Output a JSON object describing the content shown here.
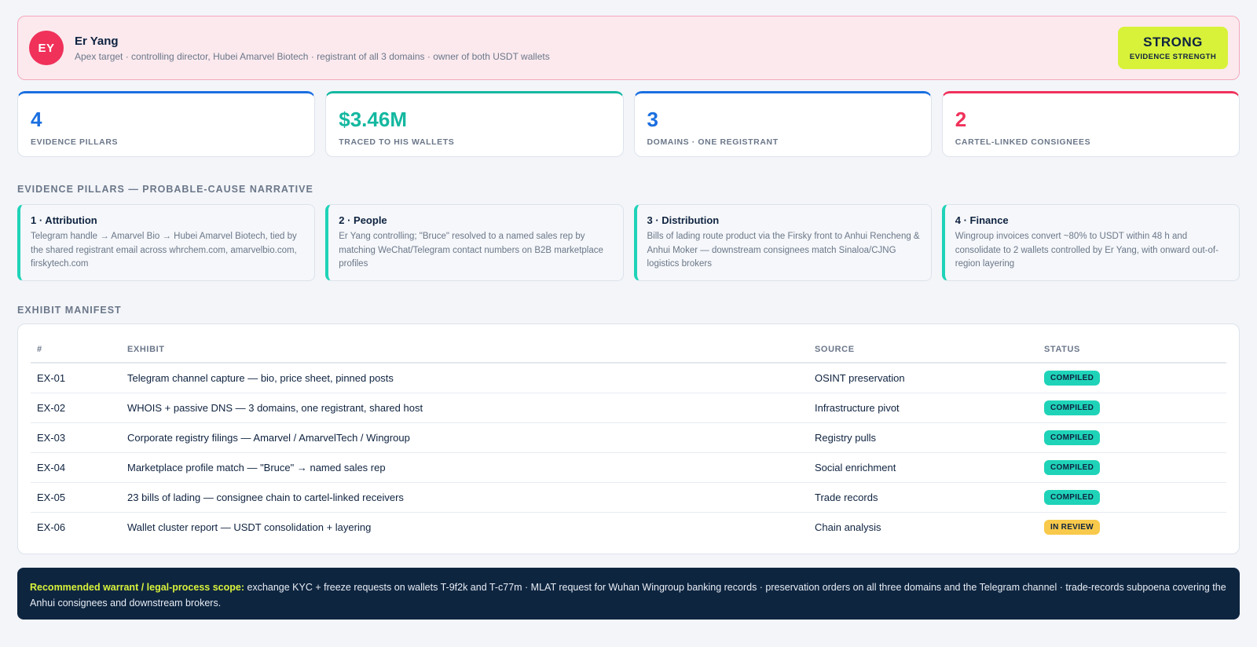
{
  "subject": {
    "initials": "EY",
    "name": "Er Yang",
    "description": "Apex target · controlling director, Hubei Amarvel Biotech · registrant of all 3 domains · owner of both USDT wallets",
    "strength_value": "STRONG",
    "strength_label": "EVIDENCE STRENGTH"
  },
  "stats": [
    {
      "value": "4",
      "label": "EVIDENCE PILLARS",
      "color": "#1b6fe0"
    },
    {
      "value": "$3.46M",
      "label": "TRACED TO HIS WALLETS",
      "color": "#14b8a0"
    },
    {
      "value": "3",
      "label": "DOMAINS · ONE REGISTRANT",
      "color": "#1b6fe0"
    },
    {
      "value": "2",
      "label": "CARTEL-LINKED CONSIGNEES",
      "color": "#f0315a"
    }
  ],
  "pillars_section_title": "EVIDENCE PILLARS — PROBABLE-CAUSE NARRATIVE",
  "pillars": [
    {
      "title": "1 · Attribution",
      "body": "Telegram handle → Amarvel Bio → Hubei Amarvel Biotech, tied by the shared registrant email across whrchem.com, amarvelbio.com, firskytech.com"
    },
    {
      "title": "2 · People",
      "body": "Er Yang controlling; \"Bruce\" resolved to a named sales rep by matching WeChat/Telegram contact numbers on B2B marketplace profiles"
    },
    {
      "title": "3 · Distribution",
      "body": "Bills of lading route product via the Firsky front to Anhui Rencheng & Anhui Moker — downstream consignees match Sinaloa/CJNG logistics brokers"
    },
    {
      "title": "4 · Finance",
      "body": "Wingroup invoices convert ~80% to USDT within 48 h and consolidate to 2 wallets controlled by Er Yang, with onward out-of-region layering"
    }
  ],
  "manifest": {
    "section_title": "EXHIBIT MANIFEST",
    "columns": [
      "#",
      "EXHIBIT",
      "SOURCE",
      "STATUS"
    ],
    "rows": [
      {
        "id": "EX-01",
        "exhibit": "Telegram channel capture — bio, price sheet, pinned posts",
        "source": "OSINT preservation",
        "status": "COMPILED"
      },
      {
        "id": "EX-02",
        "exhibit": "WHOIS + passive DNS — 3 domains, one registrant, shared host",
        "source": "Infrastructure pivot",
        "status": "COMPILED"
      },
      {
        "id": "EX-03",
        "exhibit": "Corporate registry filings — Amarvel / AmarvelTech / Wingroup",
        "source": "Registry pulls",
        "status": "COMPILED"
      },
      {
        "id": "EX-04",
        "exhibit": "Marketplace profile match — \"Bruce\" → named sales rep",
        "source": "Social enrichment",
        "status": "COMPILED"
      },
      {
        "id": "EX-05",
        "exhibit": "23 bills of lading — consignee chain to cartel-linked receivers",
        "source": "Trade records",
        "status": "COMPILED"
      },
      {
        "id": "EX-06",
        "exhibit": "Wallet cluster report — USDT consolidation + layering",
        "source": "Chain analysis",
        "status": "IN REVIEW"
      }
    ],
    "status_colors": {
      "COMPILED": "#1fd3b8",
      "IN REVIEW": "#f8c94a"
    }
  },
  "recommendation": {
    "label": "Recommended warrant / legal-process scope:",
    "text": " exchange KYC + freeze requests on wallets T-9f2k and T-c77m · MLAT request for Wuhan Wingroup banking records · preservation orders on all three domains and the Telegram channel · trade-records subpoena covering the Anhui consignees and downstream brokers."
  }
}
